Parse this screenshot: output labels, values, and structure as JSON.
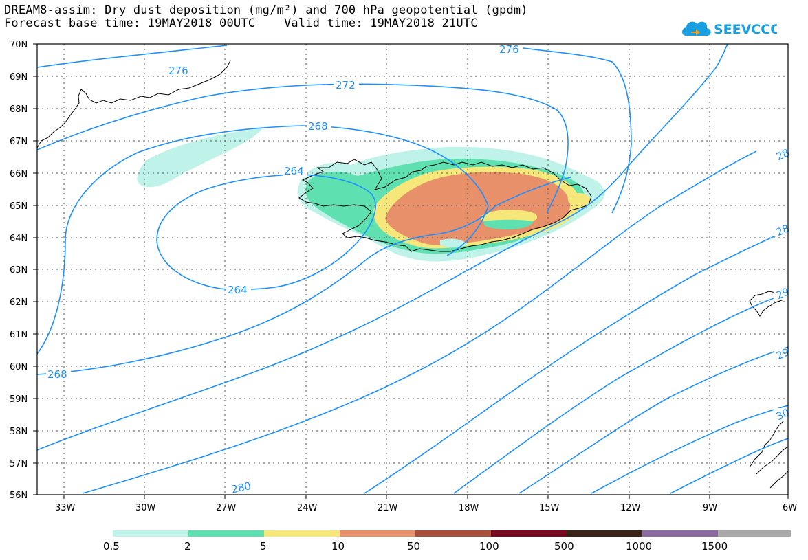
{
  "header": {
    "title_line1": "DREAM8-assim: Dry dust deposition (mg/m²) and 700 hPa geopotential (gpdm)",
    "title_line2": "Forecast base time: 19MAY2018 00UTC    Valid time: 19MAY2018 21UTC",
    "logo_text": "SEEVCCC"
  },
  "map": {
    "lon_labels": [
      "33W",
      "30W",
      "27W",
      "24W",
      "21W",
      "18W",
      "15W",
      "12W",
      "9W",
      "6W"
    ],
    "lat_labels": [
      "70N",
      "69N",
      "68N",
      "67N",
      "66N",
      "65N",
      "64N",
      "63N",
      "62N",
      "61N",
      "60N",
      "59N",
      "58N",
      "57N",
      "56N"
    ],
    "contour_labels": {
      "c276a": "276",
      "c276b": "276",
      "c272": "272",
      "c268a": "268",
      "c268b": "268",
      "c264a": "264",
      "c264b": "264",
      "c280": "280",
      "c28a": "28",
      "c28b": "28",
      "c29a": "29",
      "c29b": "29",
      "c30": "30"
    },
    "contour_color": "#1e90ff"
  },
  "legend": {
    "labels": [
      "0.5",
      "2",
      "5",
      "10",
      "50",
      "100",
      "500",
      "1000",
      "1500"
    ],
    "colors": [
      "#bff2e8",
      "#5ee0b0",
      "#f5e77a",
      "#e8906a",
      "#a8503c",
      "#7a0a22",
      "#3a2418",
      "#8a6aa0",
      "#a8a8a8"
    ]
  }
}
